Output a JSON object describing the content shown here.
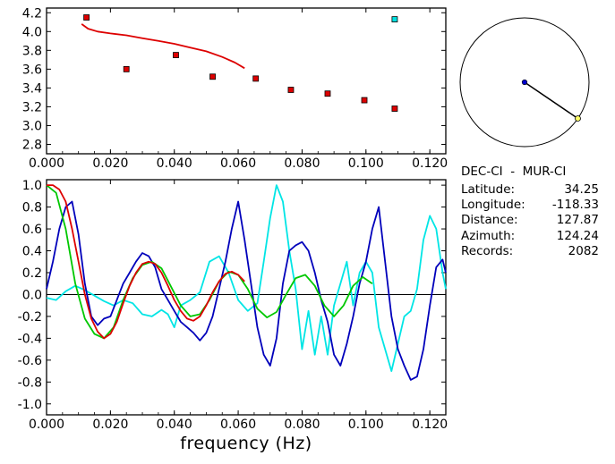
{
  "station": {
    "title": "DEC-CI  -  MUR-CI",
    "rows": [
      {
        "key": "Latitude:",
        "value": "34.25"
      },
      {
        "key": "Longitude:",
        "value": "-118.33"
      },
      {
        "key": "Distance:",
        "value": "127.87"
      },
      {
        "key": "Azimuth:",
        "value": "124.24"
      },
      {
        "key": "Records:",
        "value": "2082"
      }
    ]
  },
  "chart_data": [
    {
      "type": "scatter",
      "xlim": [
        0.0,
        0.125
      ],
      "ylim": [
        2.7,
        4.25
      ],
      "x_ticks": [
        "0.000",
        "0.020",
        "0.040",
        "0.060",
        "0.080",
        "0.100",
        "0.120"
      ],
      "x_tick_values": [
        0.0,
        0.02,
        0.04,
        0.06,
        0.08,
        0.1,
        0.12
      ],
      "y_ticks": [
        "2.8",
        "3.0",
        "3.2",
        "3.4",
        "3.6",
        "3.8",
        "4.0",
        "4.2"
      ],
      "y_tick_values": [
        2.8,
        3.0,
        3.2,
        3.4,
        3.6,
        3.8,
        4.0,
        4.2
      ],
      "points": [
        {
          "x": 0.0125,
          "y": 4.15,
          "color": "#dd0000"
        },
        {
          "x": 0.025,
          "y": 3.6,
          "color": "#dd0000"
        },
        {
          "x": 0.0405,
          "y": 3.75,
          "color": "#dd0000"
        },
        {
          "x": 0.052,
          "y": 3.52,
          "color": "#dd0000"
        },
        {
          "x": 0.0655,
          "y": 3.5,
          "color": "#dd0000"
        },
        {
          "x": 0.0765,
          "y": 3.38,
          "color": "#dd0000"
        },
        {
          "x": 0.088,
          "y": 3.34,
          "color": "#dd0000"
        },
        {
          "x": 0.0995,
          "y": 3.27,
          "color": "#dd0000"
        },
        {
          "x": 0.109,
          "y": 3.18,
          "color": "#dd0000"
        },
        {
          "x": 0.109,
          "y": 4.13,
          "color": "#00e0e0"
        }
      ],
      "series": [
        {
          "color": "#dd0000",
          "x": [
            0.011,
            0.013,
            0.016,
            0.02,
            0.025,
            0.03,
            0.035,
            0.04,
            0.045,
            0.05,
            0.055,
            0.059,
            0.062
          ],
          "y": [
            4.08,
            4.03,
            4.0,
            3.98,
            3.96,
            3.93,
            3.9,
            3.87,
            3.83,
            3.79,
            3.73,
            3.67,
            3.61
          ]
        }
      ]
    },
    {
      "type": "line",
      "xlabel": "frequency (Hz)",
      "xlim": [
        0.0,
        0.125
      ],
      "ylim": [
        -1.1,
        1.05
      ],
      "x_ticks": [
        "0.000",
        "0.020",
        "0.040",
        "0.060",
        "0.080",
        "0.100",
        "0.120"
      ],
      "x_tick_values": [
        0.0,
        0.02,
        0.04,
        0.06,
        0.08,
        0.1,
        0.12
      ],
      "y_ticks": [
        "1.0",
        "0.8",
        "0.6",
        "0.4",
        "0.2",
        "0.0",
        "-0.2",
        "-0.4",
        "-0.6",
        "-0.8",
        "-1.0"
      ],
      "y_tick_values": [
        1.0,
        0.8,
        0.6,
        0.4,
        0.2,
        0.0,
        -0.2,
        -0.4,
        -0.6,
        -0.8,
        -1.0
      ],
      "zero_line": true,
      "series": [
        {
          "color": "#00e5e5",
          "x": [
            0.0,
            0.003,
            0.006,
            0.009,
            0.012,
            0.015,
            0.018,
            0.021,
            0.024,
            0.027,
            0.03,
            0.033,
            0.036,
            0.038,
            0.04,
            0.042,
            0.045,
            0.048,
            0.051,
            0.054,
            0.057,
            0.06,
            0.063,
            0.066,
            0.068,
            0.07,
            0.072,
            0.074,
            0.076,
            0.078,
            0.08,
            0.082,
            0.084,
            0.086,
            0.088,
            0.09,
            0.092,
            0.094,
            0.096,
            0.098,
            0.1,
            0.102,
            0.104,
            0.106,
            0.108,
            0.11,
            0.112,
            0.114,
            0.116,
            0.118,
            0.12,
            0.122,
            0.124,
            0.125
          ],
          "y": [
            -0.03,
            -0.05,
            0.03,
            0.08,
            0.04,
            -0.01,
            -0.06,
            -0.1,
            -0.05,
            -0.08,
            -0.18,
            -0.2,
            -0.14,
            -0.18,
            -0.3,
            -0.1,
            -0.05,
            0.02,
            0.3,
            0.35,
            0.2,
            -0.05,
            -0.15,
            -0.08,
            0.3,
            0.7,
            1.0,
            0.85,
            0.4,
            0.05,
            -0.5,
            -0.15,
            -0.55,
            -0.2,
            -0.55,
            -0.1,
            0.1,
            0.3,
            -0.1,
            0.2,
            0.3,
            0.2,
            -0.3,
            -0.5,
            -0.7,
            -0.45,
            -0.2,
            -0.15,
            0.05,
            0.5,
            0.72,
            0.6,
            0.2,
            0.05
          ]
        },
        {
          "color": "#0000bb",
          "x": [
            0.0,
            0.002,
            0.004,
            0.006,
            0.008,
            0.01,
            0.012,
            0.014,
            0.016,
            0.018,
            0.02,
            0.022,
            0.024,
            0.026,
            0.028,
            0.03,
            0.032,
            0.034,
            0.036,
            0.038,
            0.04,
            0.042,
            0.044,
            0.046,
            0.048,
            0.05,
            0.052,
            0.054,
            0.056,
            0.058,
            0.06,
            0.062,
            0.064,
            0.066,
            0.068,
            0.07,
            0.072,
            0.074,
            0.076,
            0.078,
            0.08,
            0.082,
            0.084,
            0.086,
            0.088,
            0.09,
            0.092,
            0.094,
            0.096,
            0.098,
            0.1,
            0.102,
            0.104,
            0.106,
            0.108,
            0.11,
            0.112,
            0.114,
            0.116,
            0.118,
            0.12,
            0.122,
            0.124,
            0.125
          ],
          "y": [
            0.05,
            0.3,
            0.6,
            0.8,
            0.85,
            0.55,
            0.1,
            -0.2,
            -0.28,
            -0.22,
            -0.2,
            -0.05,
            0.1,
            0.2,
            0.3,
            0.38,
            0.35,
            0.25,
            0.05,
            -0.05,
            -0.15,
            -0.25,
            -0.3,
            -0.35,
            -0.42,
            -0.35,
            -0.2,
            0.05,
            0.3,
            0.6,
            0.85,
            0.5,
            0.1,
            -0.3,
            -0.55,
            -0.65,
            -0.4,
            0.1,
            0.4,
            0.45,
            0.48,
            0.4,
            0.2,
            -0.05,
            -0.25,
            -0.55,
            -0.65,
            -0.45,
            -0.2,
            0.1,
            0.3,
            0.6,
            0.8,
            0.3,
            -0.2,
            -0.5,
            -0.65,
            -0.78,
            -0.75,
            -0.5,
            -0.1,
            0.25,
            0.32,
            0.2
          ]
        },
        {
          "color": "#00c800",
          "x": [
            0.0,
            0.003,
            0.006,
            0.009,
            0.012,
            0.015,
            0.018,
            0.021,
            0.024,
            0.027,
            0.03,
            0.033,
            0.036,
            0.039,
            0.042,
            0.045,
            0.048,
            0.051,
            0.054,
            0.057,
            0.06,
            0.063,
            0.066,
            0.069,
            0.072,
            0.075,
            0.078,
            0.081,
            0.084,
            0.087,
            0.09,
            0.093,
            0.096,
            0.099,
            0.102
          ],
          "y": [
            1.0,
            0.93,
            0.6,
            0.1,
            -0.22,
            -0.36,
            -0.4,
            -0.3,
            -0.05,
            0.15,
            0.27,
            0.3,
            0.24,
            0.07,
            -0.1,
            -0.2,
            -0.18,
            -0.05,
            0.12,
            0.21,
            0.18,
            0.05,
            -0.13,
            -0.21,
            -0.16,
            0.0,
            0.15,
            0.18,
            0.08,
            -0.1,
            -0.2,
            -0.1,
            0.08,
            0.16,
            0.1
          ]
        },
        {
          "color": "#dd0000",
          "x": [
            0.0,
            0.002,
            0.004,
            0.006,
            0.008,
            0.01,
            0.012,
            0.014,
            0.016,
            0.018,
            0.02,
            0.022,
            0.024,
            0.026,
            0.028,
            0.03,
            0.032,
            0.034,
            0.036,
            0.038,
            0.04,
            0.042,
            0.044,
            0.046,
            0.048,
            0.05,
            0.052,
            0.054,
            0.056,
            0.058,
            0.06,
            0.062
          ],
          "y": [
            1.0,
            1.0,
            0.96,
            0.85,
            0.6,
            0.3,
            0.0,
            -0.22,
            -0.34,
            -0.4,
            -0.36,
            -0.25,
            -0.08,
            0.08,
            0.2,
            0.28,
            0.3,
            0.28,
            0.2,
            0.08,
            -0.05,
            -0.15,
            -0.22,
            -0.24,
            -0.2,
            -0.1,
            0.02,
            0.12,
            0.19,
            0.21,
            0.18,
            0.12
          ]
        }
      ]
    }
  ],
  "map": {
    "azimuth_deg": 124.24
  }
}
